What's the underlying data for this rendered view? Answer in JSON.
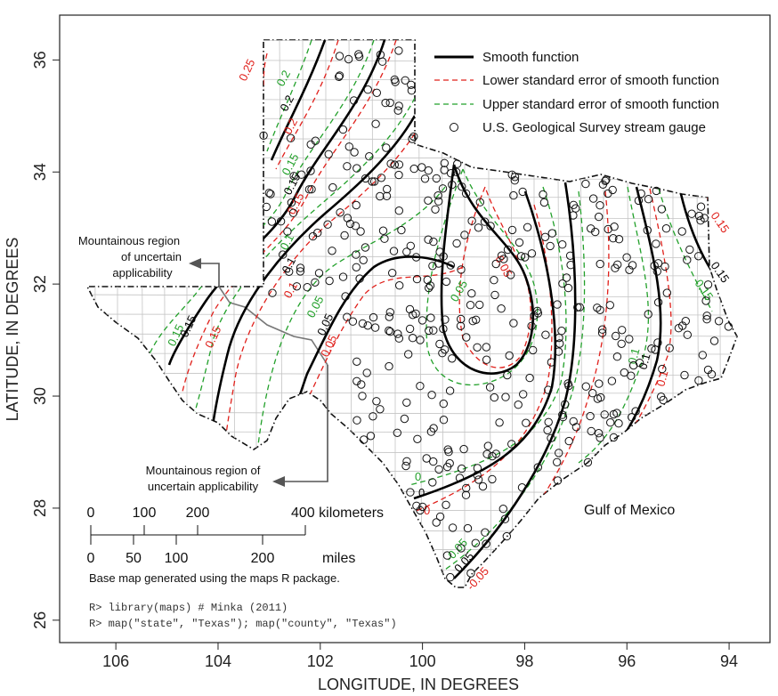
{
  "axes": {
    "xlabel": "LONGITUDE, IN DEGREES",
    "ylabel": "LATITUDE, IN DEGREES",
    "x_ticks": [
      "106",
      "104",
      "102",
      "100",
      "98",
      "96",
      "94"
    ],
    "y_ticks": [
      "26",
      "28",
      "30",
      "32",
      "34",
      "36"
    ],
    "x_tick_values": [
      106,
      104,
      102,
      100,
      98,
      96,
      94
    ],
    "y_tick_values": [
      26,
      28,
      30,
      32,
      34,
      36
    ]
  },
  "legend": {
    "smooth": "Smooth function",
    "lower": "Lower standard error of smooth function",
    "upper": "Upper standard error of smooth function",
    "gauge": "U.S. Geological Survey stream gauge"
  },
  "annotations": {
    "mountain_top_line1": "Mountainous region",
    "mountain_top_line2": "of uncertain",
    "mountain_top_line3": "applicability",
    "mountain_bottom_line1": "Mountainous region of",
    "mountain_bottom_line2": "uncertain applicability",
    "gulf": "Gulf of Mexico"
  },
  "scale_bar": {
    "km_ticks": [
      "0",
      "100",
      "200",
      "400 kilometers"
    ],
    "mile_ticks": [
      "0",
      "50",
      "100",
      "200"
    ],
    "miles_label": "miles"
  },
  "credit": {
    "line1": "Base map generated using the maps R package.",
    "code1": "R> library(maps) # Minka (2011)",
    "code2": "R> map(\"state\",  \"Texas\"); map(\"county\", \"Texas\")"
  },
  "contour_labels": {
    "c025": "0.25",
    "c02a": "0.2",
    "c02b": "0.2",
    "c02c": "0.2",
    "c015a": "0.15",
    "c015b": "0.15",
    "c015c": "0.15",
    "c01a": "0.1",
    "c01b": "0.1",
    "c005a": "0.05",
    "c005b": "0.05",
    "c005c": "0.05",
    "c0a": "0",
    "c0b": "0",
    "c0c": "0.05",
    "cn005a": "-0.05",
    "cn005b": "-0.05",
    "c005e": "0.05",
    "c005f": "0.05",
    "c01e": "0.1",
    "c01f": "0.1",
    "c015e": "0.15",
    "c015f": "0.15",
    "c015g": "0.15",
    "c015h": "0.15",
    "c015i": "0.15",
    "c01g": "0.1",
    "c005g": "0.05",
    "c0d": "0"
  },
  "colors": {
    "smooth": "#000000",
    "lower": "#e0201b",
    "upper": "#22a02a",
    "county": "#bdbdbd",
    "annotation_arrow": "#555555"
  },
  "map_data": {
    "type": "contour-map",
    "contour_levels": [
      -0.05,
      0,
      0.05,
      0.1,
      0.15,
      0.2,
      0.25
    ],
    "xlim": [
      107.1,
      93.2
    ],
    "ylim": [
      25.6,
      36.8
    ]
  }
}
